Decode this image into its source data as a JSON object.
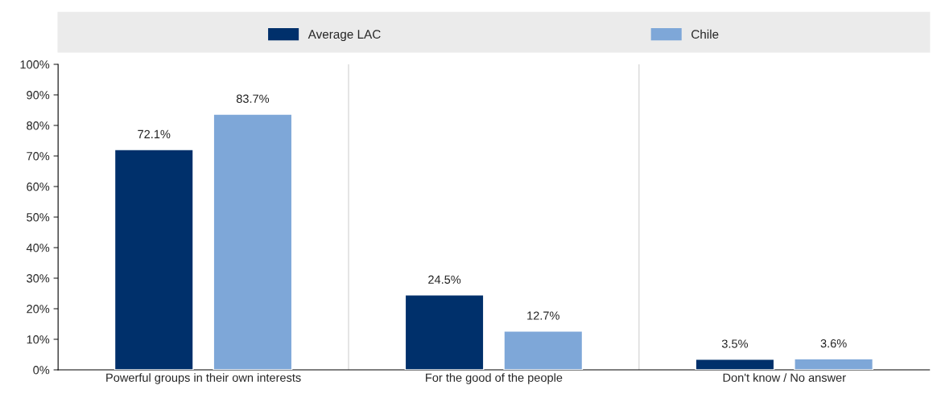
{
  "chart_data": {
    "type": "bar",
    "categories": [
      "Powerful groups in their own interests",
      "For the good of the people",
      "Don't know / No answer"
    ],
    "series": [
      {
        "name": "Average LAC",
        "color": "#00306b",
        "values": [
          72.1,
          24.5,
          3.5
        ],
        "value_labels": [
          "72.1%",
          "24.5%",
          "3.5%"
        ]
      },
      {
        "name": "Chile",
        "color": "#7ea7d8",
        "values": [
          83.7,
          12.7,
          3.6
        ],
        "value_labels": [
          "83.7%",
          "12.7%",
          "3.6%"
        ]
      }
    ],
    "ylim": [
      0,
      100
    ],
    "yticks": [
      {
        "value": 0,
        "label": "0%"
      },
      {
        "value": 10,
        "label": "10%"
      },
      {
        "value": 20,
        "label": "20%"
      },
      {
        "value": 30,
        "label": "30%"
      },
      {
        "value": 40,
        "label": "40%"
      },
      {
        "value": 50,
        "label": "50%"
      },
      {
        "value": 60,
        "label": "60%"
      },
      {
        "value": 70,
        "label": "70%"
      },
      {
        "value": 80,
        "label": "80%"
      },
      {
        "value": 90,
        "label": "90%"
      },
      {
        "value": 100,
        "label": "100%"
      }
    ],
    "grid": "x",
    "legend": "top"
  }
}
